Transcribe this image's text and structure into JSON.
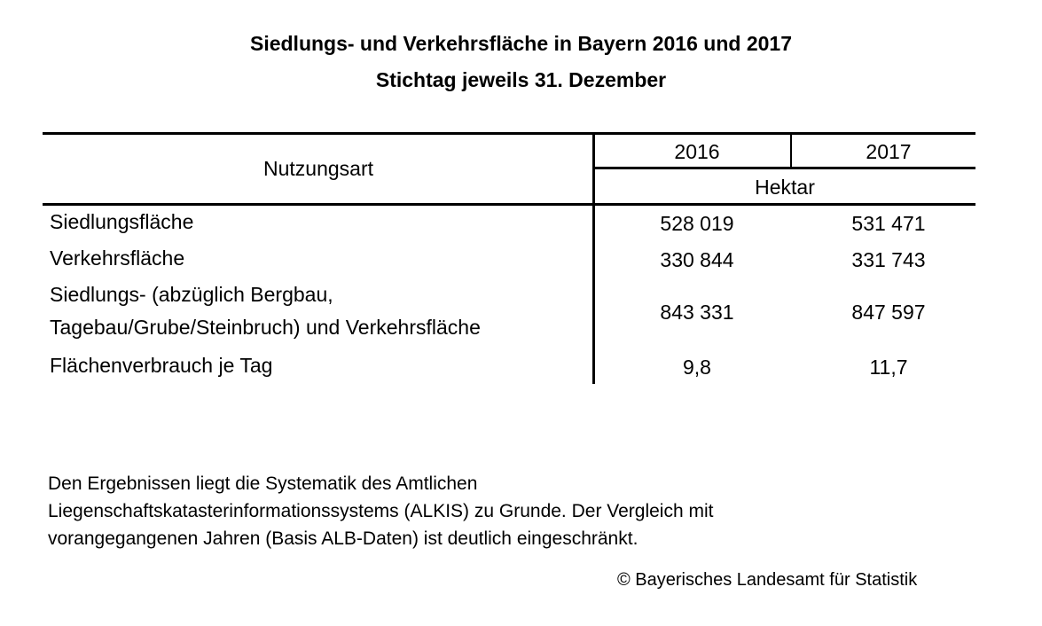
{
  "title": "Siedlungs- und Verkehrsfläche in Bayern 2016 und 2017",
  "subtitle": "Stichtag jeweils 31. Dezember",
  "table": {
    "header": {
      "row_label": "Nutzungsart",
      "years": [
        "2016",
        "2017"
      ],
      "unit": "Hektar"
    },
    "rows": [
      {
        "label": "Siedlungsfläche",
        "v2016": "528 019",
        "v2017": "531 471"
      },
      {
        "label": "Verkehrsfläche",
        "v2016": "330 844",
        "v2017": "331 743"
      },
      {
        "label_line1": "Siedlungs- (abzüglich Bergbau,",
        "label_line2": "Tagebau/Grube/Steinbruch) und Verkehrsfläche",
        "v2016": "843 331",
        "v2017": "847 597"
      },
      {
        "label": "Flächenverbrauch je Tag",
        "v2016": "9,8",
        "v2017": "11,7"
      }
    ]
  },
  "note": {
    "line1": "Den Ergebnissen liegt die Systematik des Amtlichen",
    "line2": "Liegenschaftskatasterinformationssystems (ALKIS) zu Grunde. Der Vergleich mit",
    "line3": "vorangegangenen Jahren (Basis ALB-Daten) ist deutlich eingeschränkt."
  },
  "copyright": "© Bayerisches Landesamt für Statistik"
}
